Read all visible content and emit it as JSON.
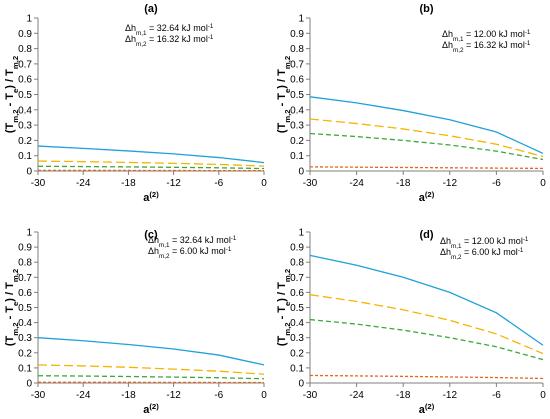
{
  "chart_data": [
    {
      "type": "line",
      "title": "(a)",
      "xlabel": "a(2)",
      "ylabel": "(Tm,2 - Te) / Tm,2",
      "xlim": [
        -30,
        0
      ],
      "ylim": [
        0,
        1
      ],
      "xticks": [
        "-30",
        "-24",
        "-18",
        "-12",
        "-6",
        "0"
      ],
      "yticks": [
        "0",
        "0.1",
        "0.2",
        "0.3",
        "0.4",
        "0.5",
        "0.6",
        "0.7",
        "0.8",
        "0.9",
        "1"
      ],
      "grid": false,
      "annotations": [
        "Δhm,1 = 32.64 kJ mol-1",
        "Δhm,2 = 16.32 kJ mol-1"
      ],
      "series": [
        {
          "color": "#1fa1d9",
          "dash": "solid",
          "x": [
            -30,
            -24,
            -18,
            -12,
            -6,
            0
          ],
          "y": [
            0.163,
            0.148,
            0.131,
            0.112,
            0.088,
            0.055
          ]
        },
        {
          "color": "#f5b400",
          "dash": "long",
          "x": [
            -30,
            -24,
            -18,
            -12,
            -6,
            0
          ],
          "y": [
            0.065,
            0.061,
            0.056,
            0.05,
            0.043,
            0.032
          ]
        },
        {
          "color": "#3ba83b",
          "dash": "medium",
          "x": [
            -30,
            -24,
            -18,
            -12,
            -6,
            0
          ],
          "y": [
            0.031,
            0.029,
            0.027,
            0.024,
            0.021,
            0.016
          ]
        },
        {
          "color": "#e8641e",
          "dash": "short",
          "x": [
            -30,
            -24,
            -18,
            -12,
            -6,
            0
          ],
          "y": [
            0.004,
            0.004,
            0.0035,
            0.003,
            0.0025,
            0.002
          ]
        }
      ]
    },
    {
      "type": "line",
      "title": "(b)",
      "xlabel": "a(2)",
      "ylabel": "(Tm,2 - Te) / Tm,2",
      "xlim": [
        -30,
        0
      ],
      "ylim": [
        0,
        1
      ],
      "xticks": [
        "-30",
        "-24",
        "-18",
        "-12",
        "-6",
        "0"
      ],
      "yticks": [
        "0",
        "0.1",
        "0.2",
        "0.3",
        "0.4",
        "0.5",
        "0.6",
        "0.7",
        "0.8",
        "0.9",
        "1"
      ],
      "grid": false,
      "annotations": [
        "Δhm,1 = 12.00 kJ mol-1",
        "Δhm,2 = 16.32 kJ mol-1"
      ],
      "series": [
        {
          "color": "#1fa1d9",
          "dash": "solid",
          "x": [
            -30,
            -24,
            -18,
            -12,
            -6,
            0
          ],
          "y": [
            0.485,
            0.445,
            0.395,
            0.335,
            0.255,
            0.115
          ]
        },
        {
          "color": "#f5b400",
          "dash": "long",
          "x": [
            -30,
            -24,
            -18,
            -12,
            -6,
            0
          ],
          "y": [
            0.34,
            0.31,
            0.275,
            0.23,
            0.175,
            0.095
          ]
        },
        {
          "color": "#3ba83b",
          "dash": "medium",
          "x": [
            -30,
            -24,
            -18,
            -12,
            -6,
            0
          ],
          "y": [
            0.245,
            0.225,
            0.2,
            0.17,
            0.13,
            0.075
          ]
        },
        {
          "color": "#e8641e",
          "dash": "short",
          "x": [
            -30,
            -24,
            -18,
            -12,
            -6,
            0
          ],
          "y": [
            0.027,
            0.025,
            0.023,
            0.021,
            0.019,
            0.017
          ]
        }
      ]
    },
    {
      "type": "line",
      "title": "(c)",
      "xlabel": "a(2)",
      "ylabel": "(Tm,2 - Te) / Tm,2",
      "xlim": [
        -30,
        0
      ],
      "ylim": [
        0,
        1
      ],
      "xticks": [
        "-30",
        "-24",
        "-18",
        "-12",
        "-6",
        "0"
      ],
      "yticks": [
        "0",
        "0.1",
        "0.2",
        "0.3",
        "0.4",
        "0.5",
        "0.6",
        "0.7",
        "0.8",
        "0.9",
        "1"
      ],
      "grid": false,
      "annotations": [
        "Δhm,1 = 32.64 kJ mol-1",
        "Δhm,2 = 6.00 kJ mol-1"
      ],
      "series": [
        {
          "color": "#1fa1d9",
          "dash": "solid",
          "x": [
            -30,
            -24,
            -18,
            -12,
            -6,
            0
          ],
          "y": [
            0.3,
            0.28,
            0.255,
            0.225,
            0.185,
            0.12
          ]
        },
        {
          "color": "#f5b400",
          "dash": "long",
          "x": [
            -30,
            -24,
            -18,
            -12,
            -6,
            0
          ],
          "y": [
            0.12,
            0.113,
            0.104,
            0.092,
            0.078,
            0.058
          ]
        },
        {
          "color": "#3ba83b",
          "dash": "medium",
          "x": [
            -30,
            -24,
            -18,
            -12,
            -6,
            0
          ],
          "y": [
            0.048,
            0.046,
            0.043,
            0.039,
            0.035,
            0.028
          ]
        },
        {
          "color": "#e8641e",
          "dash": "short",
          "x": [
            -30,
            -24,
            -18,
            -12,
            -6,
            0
          ],
          "y": [
            0.005,
            0.005,
            0.0045,
            0.004,
            0.0035,
            0.003
          ]
        }
      ]
    },
    {
      "type": "line",
      "title": "(d)",
      "xlabel": "a(2)",
      "ylabel": "(Tm,2 - Te) / Tm,2",
      "xlim": [
        -30,
        0
      ],
      "ylim": [
        0,
        1
      ],
      "xticks": [
        "-30",
        "-24",
        "-18",
        "-12",
        "-6",
        "0"
      ],
      "yticks": [
        "0",
        "0.1",
        "0.2",
        "0.3",
        "0.4",
        "0.5",
        "0.6",
        "0.7",
        "0.8",
        "0.9",
        "1"
      ],
      "grid": false,
      "annotations": [
        "Δhm,1 = 12.00 kJ mol-1",
        "Δhm,2 = 6.00 kJ mol-1"
      ],
      "series": [
        {
          "color": "#1fa1d9",
          "dash": "solid",
          "x": [
            -30,
            -24,
            -18,
            -12,
            -6,
            0
          ],
          "y": [
            0.845,
            0.78,
            0.7,
            0.6,
            0.465,
            0.25
          ]
        },
        {
          "color": "#f5b400",
          "dash": "long",
          "x": [
            -30,
            -24,
            -18,
            -12,
            -6,
            0
          ],
          "y": [
            0.585,
            0.54,
            0.485,
            0.415,
            0.325,
            0.195
          ]
        },
        {
          "color": "#3ba83b",
          "dash": "medium",
          "x": [
            -30,
            -24,
            -18,
            -12,
            -6,
            0
          ],
          "y": [
            0.42,
            0.39,
            0.35,
            0.3,
            0.24,
            0.155
          ]
        },
        {
          "color": "#e8641e",
          "dash": "short",
          "x": [
            -30,
            -24,
            -18,
            -12,
            -6,
            0
          ],
          "y": [
            0.05,
            0.047,
            0.044,
            0.04,
            0.036,
            0.03
          ]
        }
      ]
    }
  ]
}
